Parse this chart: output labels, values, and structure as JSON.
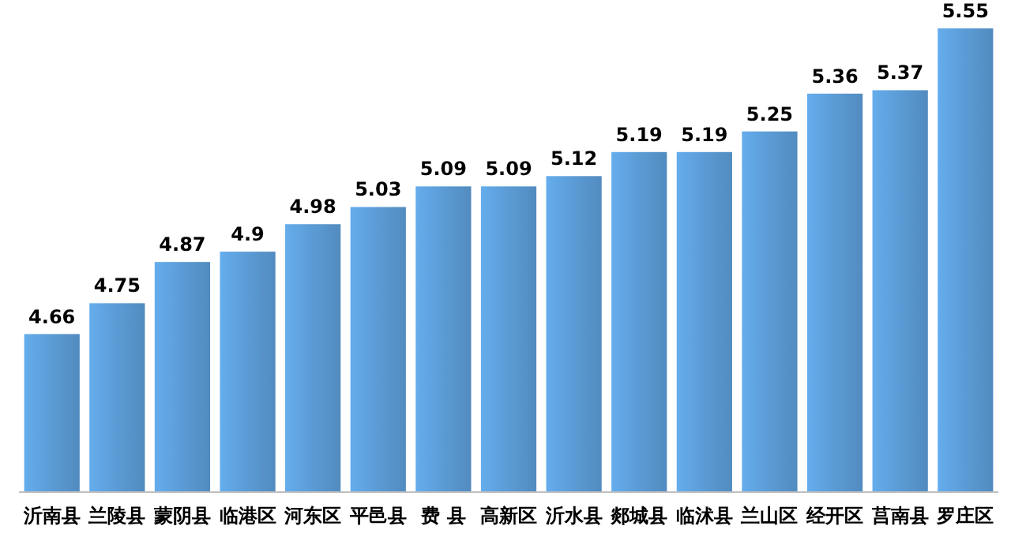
{
  "chart_data": {
    "type": "bar",
    "categories": [
      "沂南县",
      "兰陵县",
      "蒙阴县",
      "临港区",
      "河东区",
      "平邑县",
      "费 县",
      "高新区",
      "沂水县",
      "郯城县",
      "临沭县",
      "兰山区",
      "经开区",
      "莒南县",
      "罗庄区"
    ],
    "values": [
      4.66,
      4.75,
      4.87,
      4.9,
      4.98,
      5.03,
      5.09,
      5.09,
      5.12,
      5.19,
      5.19,
      5.25,
      5.36,
      5.37,
      5.55
    ],
    "color": "#5b9bd5",
    "ylim": [
      4.2,
      5.55
    ],
    "data_labels": true,
    "tick_labels": "x"
  }
}
